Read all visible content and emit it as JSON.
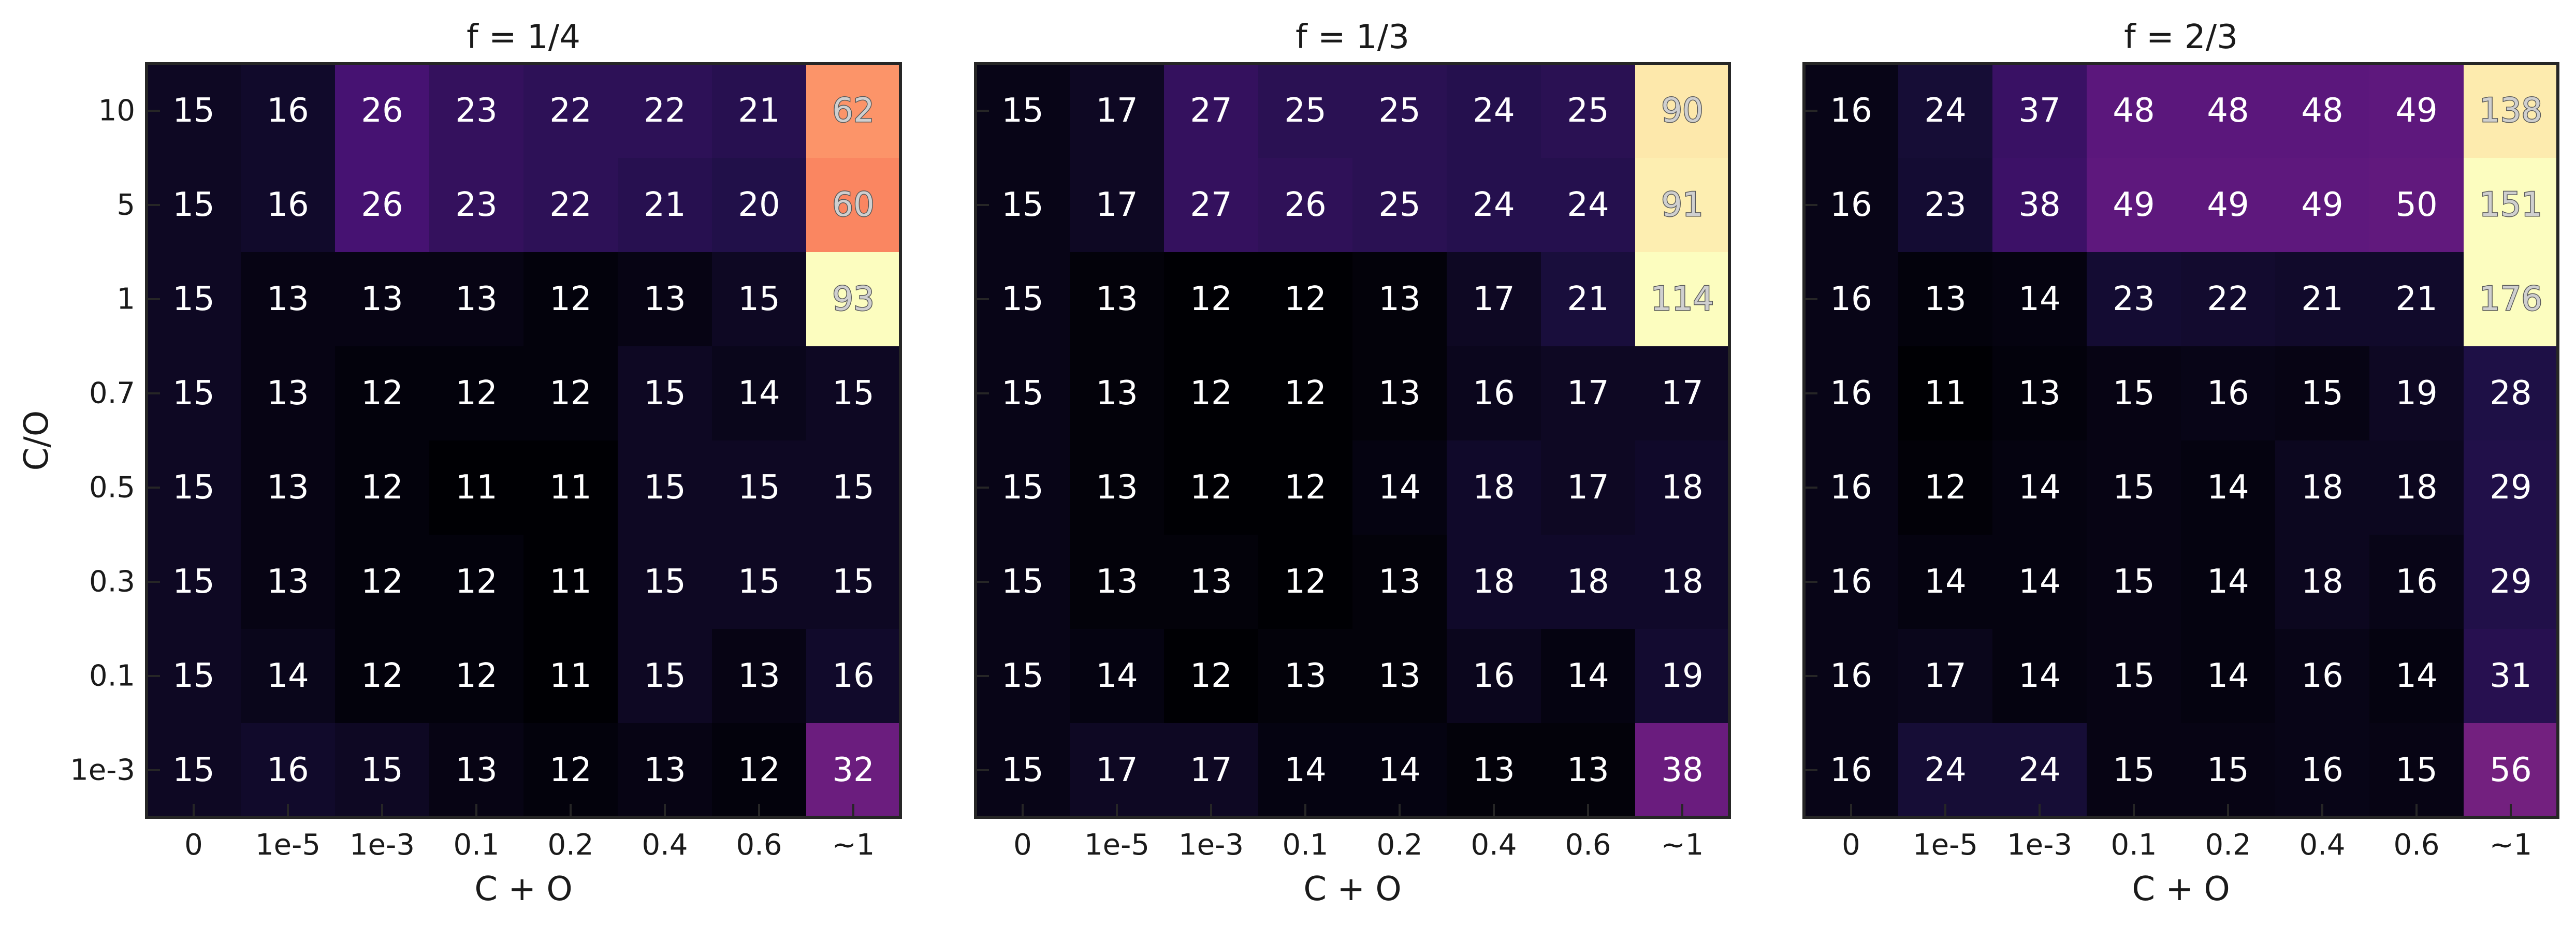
{
  "chart_data": [
    {
      "type": "heatmap",
      "title": "f = 1/4",
      "xlabel": "C + O",
      "ylabel": "C/O",
      "x_categories": [
        "0",
        "1e-5",
        "1e-3",
        "0.1",
        "0.2",
        "0.4",
        "0.6",
        "~1"
      ],
      "y_categories": [
        "10",
        "5",
        "1",
        "0.7",
        "0.5",
        "0.3",
        "0.1",
        "1e-3"
      ],
      "colormap": "magma",
      "color_range": [
        11,
        93
      ],
      "values": [
        [
          15,
          16,
          26,
          23,
          22,
          22,
          21,
          62
        ],
        [
          15,
          16,
          26,
          23,
          22,
          21,
          20,
          60
        ],
        [
          15,
          13,
          13,
          13,
          12,
          13,
          15,
          93
        ],
        [
          15,
          13,
          12,
          12,
          12,
          15,
          14,
          15
        ],
        [
          15,
          13,
          12,
          11,
          11,
          15,
          15,
          15
        ],
        [
          15,
          13,
          12,
          12,
          11,
          15,
          15,
          15
        ],
        [
          15,
          14,
          12,
          12,
          11,
          15,
          13,
          16
        ],
        [
          15,
          16,
          15,
          13,
          12,
          13,
          12,
          32
        ]
      ]
    },
    {
      "type": "heatmap",
      "title": "f = 1/3",
      "xlabel": "C + O",
      "ylabel": "",
      "x_categories": [
        "0",
        "1e-5",
        "1e-3",
        "0.1",
        "0.2",
        "0.4",
        "0.6",
        "~1"
      ],
      "y_categories": [
        "10",
        "5",
        "1",
        "0.7",
        "0.5",
        "0.3",
        "0.1",
        "1e-3"
      ],
      "colormap": "magma",
      "color_range": [
        12,
        114
      ],
      "values": [
        [
          15,
          17,
          27,
          25,
          25,
          24,
          25,
          90
        ],
        [
          15,
          17,
          27,
          26,
          25,
          24,
          24,
          91
        ],
        [
          15,
          13,
          12,
          12,
          13,
          17,
          21,
          114
        ],
        [
          15,
          13,
          12,
          12,
          13,
          16,
          17,
          17
        ],
        [
          15,
          13,
          12,
          12,
          14,
          18,
          17,
          18
        ],
        [
          15,
          13,
          13,
          12,
          13,
          18,
          18,
          18
        ],
        [
          15,
          14,
          12,
          13,
          13,
          16,
          14,
          19
        ],
        [
          15,
          17,
          17,
          14,
          14,
          13,
          13,
          38
        ]
      ]
    },
    {
      "type": "heatmap",
      "title": "f = 2/3",
      "xlabel": "C + O",
      "ylabel": "",
      "x_categories": [
        "0",
        "1e-5",
        "1e-3",
        "0.1",
        "0.2",
        "0.4",
        "0.6",
        "~1"
      ],
      "y_categories": [
        "10",
        "5",
        "1",
        "0.7",
        "0.5",
        "0.3",
        "0.1",
        "1e-3"
      ],
      "colormap": "magma",
      "color_range": [
        11,
        176
      ],
      "values": [
        [
          16,
          24,
          37,
          48,
          48,
          48,
          49,
          138
        ],
        [
          16,
          23,
          38,
          49,
          49,
          49,
          50,
          151
        ],
        [
          16,
          13,
          14,
          23,
          22,
          21,
          21,
          176
        ],
        [
          16,
          11,
          13,
          15,
          16,
          15,
          19,
          28
        ],
        [
          16,
          12,
          14,
          15,
          14,
          18,
          18,
          29
        ],
        [
          16,
          14,
          14,
          15,
          14,
          18,
          16,
          29
        ],
        [
          16,
          17,
          14,
          15,
          14,
          16,
          14,
          31
        ],
        [
          16,
          24,
          24,
          15,
          15,
          16,
          15,
          56
        ]
      ]
    }
  ]
}
